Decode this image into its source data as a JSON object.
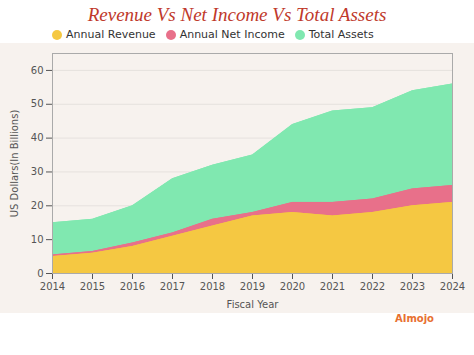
{
  "chart_data": {
    "type": "area",
    "title": "Revenue Vs Net Income Vs Total Assets",
    "xlabel": "Fiscal Year",
    "ylabel": "US Dollars(In Billions)",
    "x": [
      2014,
      2015,
      2016,
      2017,
      2018,
      2019,
      2020,
      2021,
      2022,
      2023,
      2024
    ],
    "series": [
      {
        "name": "Annual Revenue",
        "color": "#F5C842",
        "values": [
          5,
          6,
          8,
          11,
          14,
          17,
          18,
          17,
          18,
          20,
          21
        ]
      },
      {
        "name": "Annual Net Income",
        "color": "#E8708A",
        "values": [
          5.5,
          6.5,
          9,
          12,
          16,
          18,
          21,
          21,
          22,
          25,
          26
        ]
      },
      {
        "name": "Total Assets",
        "color": "#80E8B0",
        "values": [
          15,
          16,
          20,
          28,
          32,
          35,
          44,
          48,
          49,
          54,
          56
        ]
      }
    ],
    "xlim": [
      2014,
      2024
    ],
    "xticks": [
      2014,
      2015,
      2016,
      2017,
      2018,
      2019,
      2020,
      2021,
      2022,
      2023,
      2024
    ],
    "ylim": [
      0,
      65
    ],
    "yticks": [
      0,
      10,
      20,
      30,
      40,
      50,
      60
    ],
    "grid": true,
    "legend": "top",
    "annotations": [
      "AImojo"
    ]
  }
}
